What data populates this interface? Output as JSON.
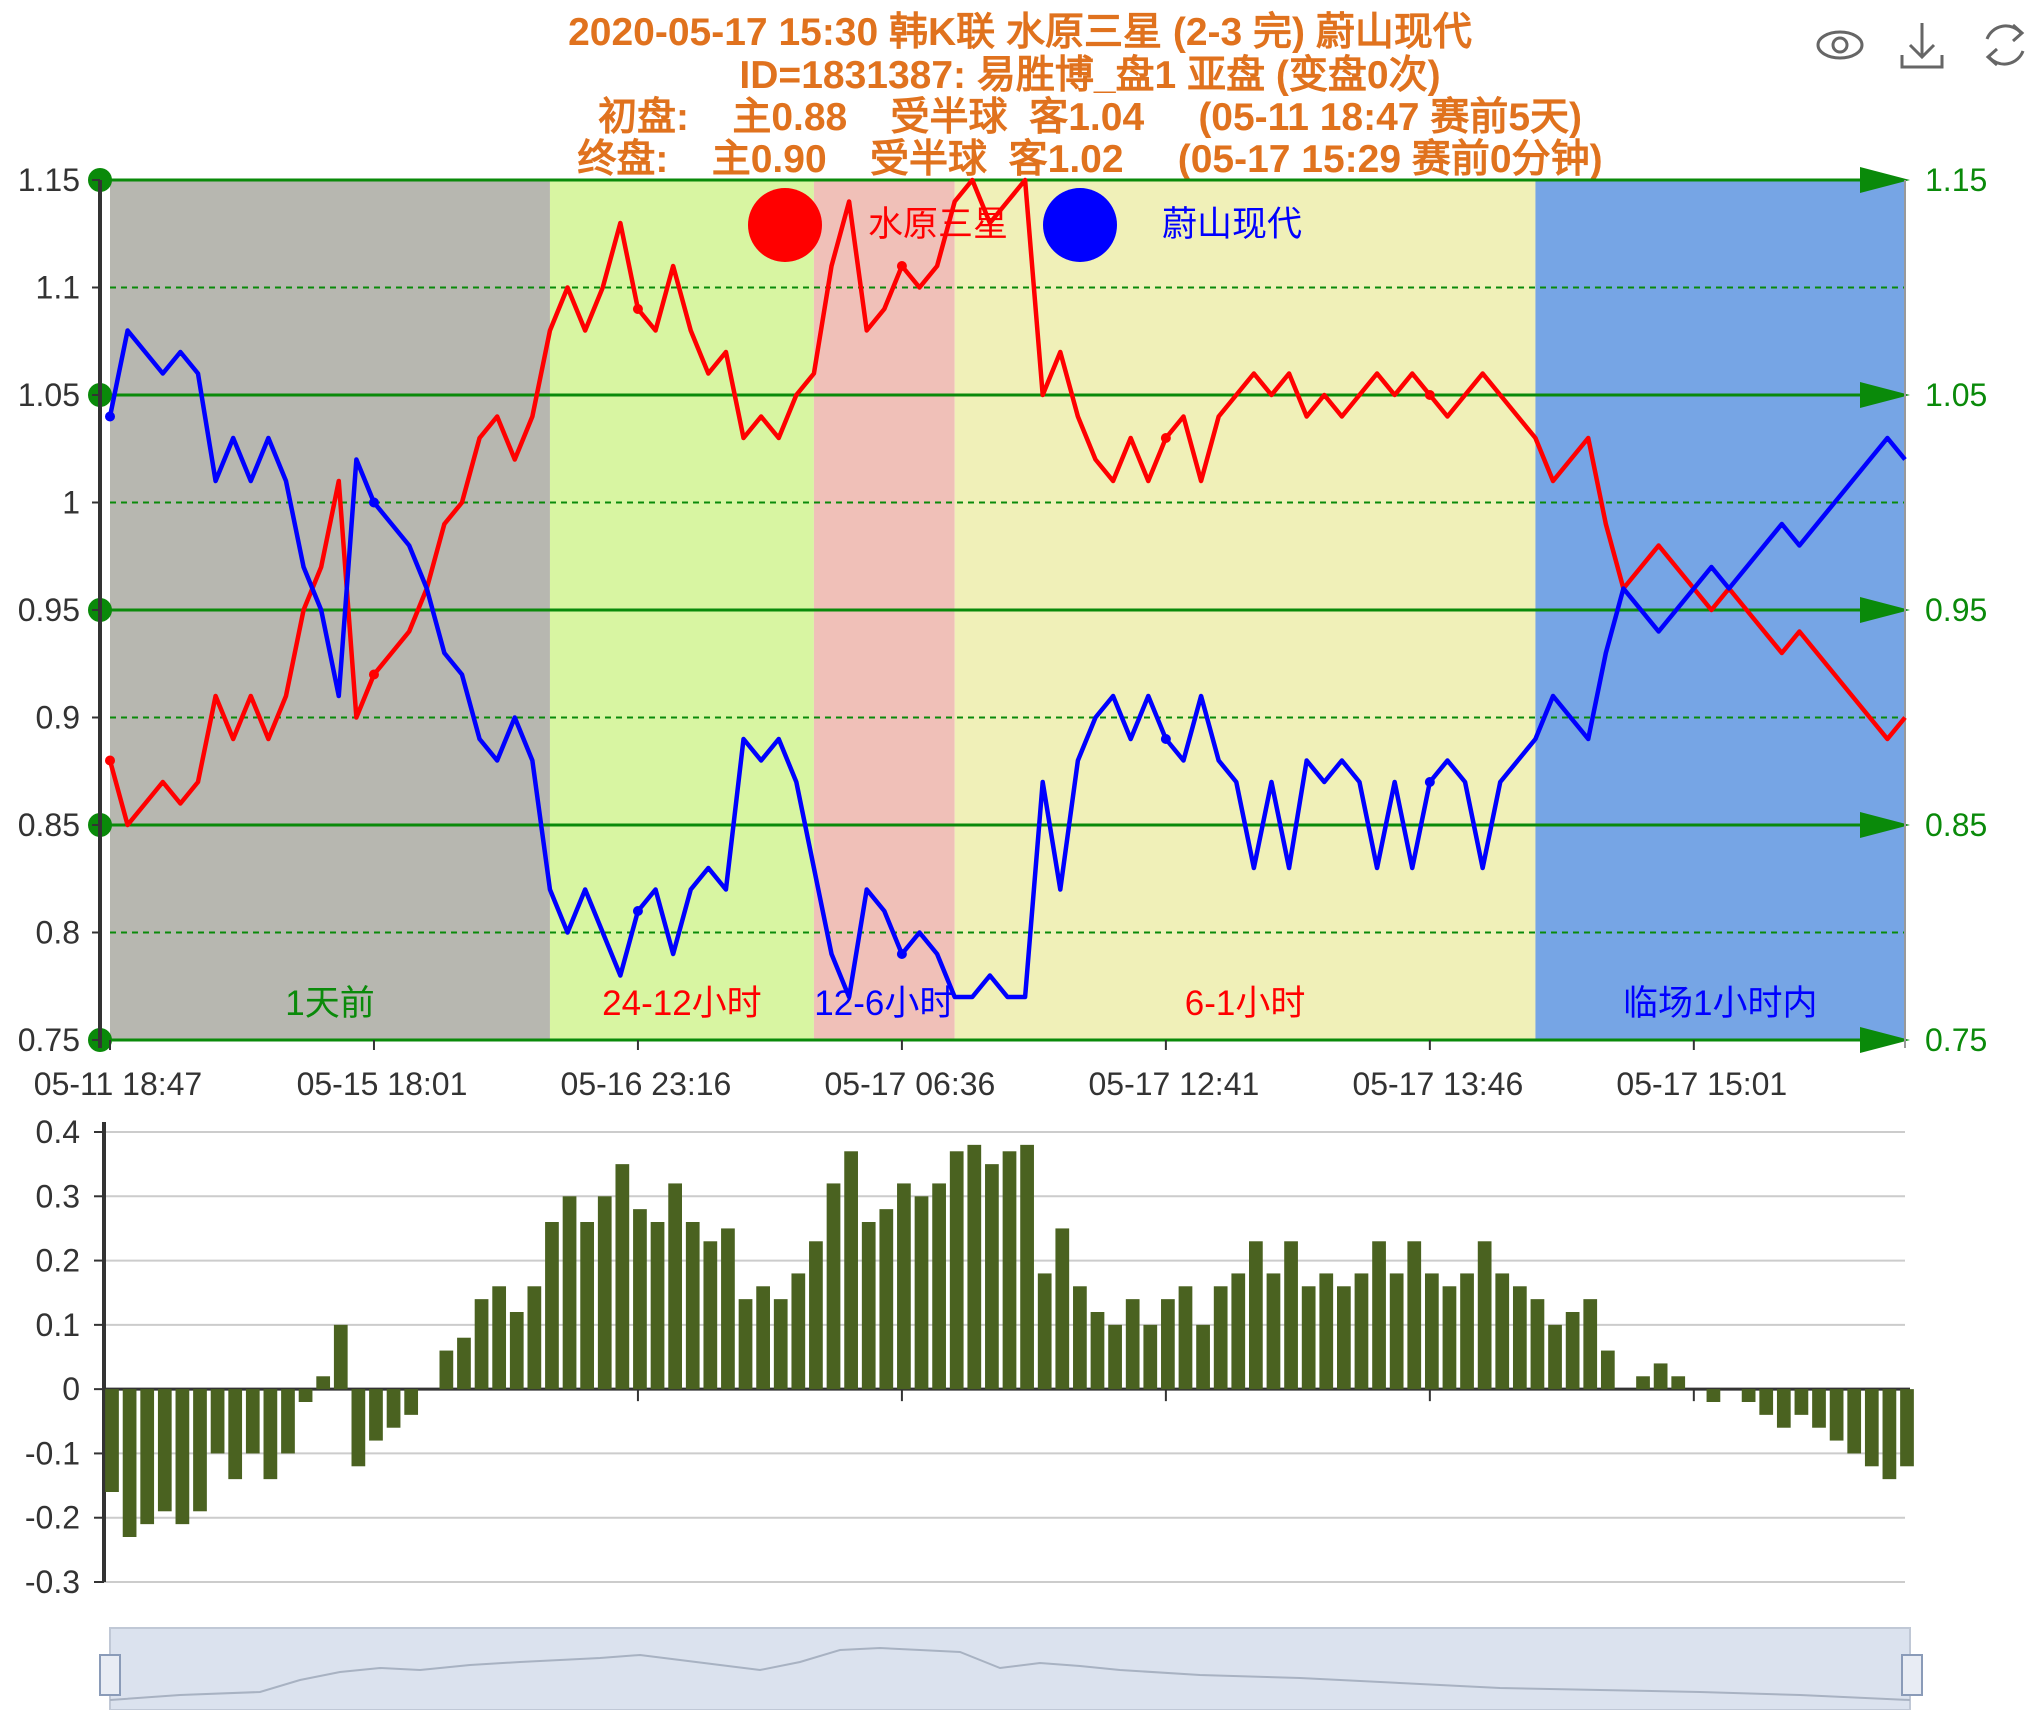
{
  "title": {
    "line1": "2020-05-17 15:30 韩K联 水原三星 (2-3 完) 蔚山现代",
    "line2": "ID=1831387: 易胜博_盘1 亚盘 (变盘0次)",
    "line3": "初盘:    主0.88    受半球  客1.04     (05-11 18:47 赛前5天)",
    "line4": "终盘:    主0.90    受半球  客1.02     (05-17 15:29 赛前0分钟)"
  },
  "toolbar": {
    "view_icon": "eye-icon",
    "download_icon": "download-icon",
    "refresh_icon": "refresh-icon"
  },
  "colors": {
    "home": "#ff0000",
    "away": "#0000ff",
    "grid_green": "#0a8a0a",
    "bar": "#4a6220",
    "title": "#e0721e"
  },
  "chart_data": [
    {
      "type": "line",
      "legend": [
        "水原三星",
        "蔚山现代"
      ],
      "legend_position": "top-center",
      "ylim": [
        0.75,
        1.15
      ],
      "y_ticks": [
        "1.15",
        "1.1",
        "1.05",
        "1",
        "0.95",
        "0.9",
        "0.85",
        "0.8",
        "0.75"
      ],
      "y_ticks_right": [
        "1.15",
        "1.05",
        "0.95",
        "0.85",
        "0.75"
      ],
      "x_tick_labels": [
        "05-11 18:47",
        "05-15 18:01",
        "05-16 23:16",
        "05-17 06:36",
        "05-17 12:41",
        "05-17 13:46",
        "05-17 15:01"
      ],
      "periods": [
        {
          "label": "1天前",
          "start": 0,
          "end": 25,
          "fill": "#b7b7b0",
          "label_color": "#0a8a0a"
        },
        {
          "label": "24-12小时",
          "start": 25,
          "end": 40,
          "fill": "#d8f5a2",
          "label_color": "#ff0000"
        },
        {
          "label": "12-6小时",
          "start": 40,
          "end": 48,
          "fill": "#f0c0b8",
          "label_color": "#0000ff"
        },
        {
          "label": "6-1小时",
          "start": 48,
          "end": 81,
          "fill": "#f0f0b8",
          "label_color": "#ff0000"
        },
        {
          "label": "临场1小时内",
          "start": 81,
          "end": 102,
          "fill": "#76a5e5",
          "label_color": "#0000ff"
        }
      ],
      "series": [
        {
          "name": "水原三星",
          "color": "#ff0000",
          "values": [
            0.88,
            0.85,
            0.86,
            0.87,
            0.86,
            0.87,
            0.91,
            0.89,
            0.91,
            0.89,
            0.91,
            0.95,
            0.97,
            1.01,
            0.9,
            0.92,
            0.93,
            0.94,
            0.96,
            0.99,
            1.0,
            1.03,
            1.04,
            1.02,
            1.04,
            1.08,
            1.1,
            1.08,
            1.1,
            1.13,
            1.09,
            1.08,
            1.11,
            1.08,
            1.06,
            1.07,
            1.03,
            1.04,
            1.03,
            1.05,
            1.06,
            1.11,
            1.14,
            1.08,
            1.09,
            1.11,
            1.1,
            1.11,
            1.14,
            1.15,
            1.13,
            1.14,
            1.15,
            1.05,
            1.07,
            1.04,
            1.02,
            1.01,
            1.03,
            1.01,
            1.03,
            1.04,
            1.01,
            1.04,
            1.05,
            1.06,
            1.05,
            1.06,
            1.04,
            1.05,
            1.04,
            1.05,
            1.06,
            1.05,
            1.06,
            1.05,
            1.04,
            1.05,
            1.06,
            1.05,
            1.04,
            1.03,
            1.01,
            1.02,
            1.03,
            0.99,
            0.96,
            0.97,
            0.98,
            0.97,
            0.96,
            0.95,
            0.96,
            0.95,
            0.94,
            0.93,
            0.94,
            0.93,
            0.92,
            0.91,
            0.9,
            0.89,
            0.9
          ],
          "dot_indices": [
            0,
            15,
            30,
            45,
            60,
            75
          ]
        },
        {
          "name": "蔚山现代",
          "color": "#0000ff",
          "values": [
            1.04,
            1.08,
            1.07,
            1.06,
            1.07,
            1.06,
            1.01,
            1.03,
            1.01,
            1.03,
            1.01,
            0.97,
            0.95,
            0.91,
            1.02,
            1.0,
            0.99,
            0.98,
            0.96,
            0.93,
            0.92,
            0.89,
            0.88,
            0.9,
            0.88,
            0.82,
            0.8,
            0.82,
            0.8,
            0.78,
            0.81,
            0.82,
            0.79,
            0.82,
            0.83,
            0.82,
            0.89,
            0.88,
            0.89,
            0.87,
            0.83,
            0.79,
            0.77,
            0.82,
            0.81,
            0.79,
            0.8,
            0.79,
            0.77,
            0.77,
            0.78,
            0.77,
            0.77,
            0.87,
            0.82,
            0.88,
            0.9,
            0.91,
            0.89,
            0.91,
            0.89,
            0.88,
            0.91,
            0.88,
            0.87,
            0.83,
            0.87,
            0.83,
            0.88,
            0.87,
            0.88,
            0.87,
            0.83,
            0.87,
            0.83,
            0.87,
            0.88,
            0.87,
            0.83,
            0.87,
            0.88,
            0.89,
            0.91,
            0.9,
            0.89,
            0.93,
            0.96,
            0.95,
            0.94,
            0.95,
            0.96,
            0.97,
            0.96,
            0.97,
            0.98,
            0.99,
            0.98,
            0.99,
            1.0,
            1.01,
            1.02,
            1.03,
            1.02
          ],
          "dot_indices": [
            0,
            15,
            30,
            45,
            60,
            75
          ]
        }
      ]
    },
    {
      "type": "bar",
      "ylim": [
        -0.3,
        0.4
      ],
      "y_ticks": [
        "0.4",
        "0.3",
        "0.2",
        "0.1",
        "0",
        "-0.1",
        "-0.2",
        "-0.3"
      ],
      "color": "#4a6220",
      "values": [
        -0.16,
        -0.23,
        -0.21,
        -0.19,
        -0.21,
        -0.19,
        -0.1,
        -0.14,
        -0.1,
        -0.14,
        -0.1,
        -0.02,
        0.02,
        0.1,
        -0.12,
        -0.08,
        -0.06,
        -0.04,
        0,
        0.06,
        0.08,
        0.14,
        0.16,
        0.12,
        0.16,
        0.26,
        0.3,
        0.26,
        0.3,
        0.35,
        0.28,
        0.26,
        0.32,
        0.26,
        0.23,
        0.25,
        0.14,
        0.16,
        0.14,
        0.18,
        0.23,
        0.32,
        0.37,
        0.26,
        0.28,
        0.32,
        0.3,
        0.32,
        0.37,
        0.38,
        0.35,
        0.37,
        0.38,
        0.18,
        0.25,
        0.16,
        0.12,
        0.1,
        0.14,
        0.1,
        0.14,
        0.16,
        0.1,
        0.16,
        0.18,
        0.23,
        0.18,
        0.23,
        0.16,
        0.18,
        0.16,
        0.18,
        0.23,
        0.18,
        0.23,
        0.18,
        0.16,
        0.18,
        0.23,
        0.18,
        0.16,
        0.14,
        0.1,
        0.12,
        0.14,
        0.06,
        0,
        0.02,
        0.04,
        0.02,
        0,
        -0.02,
        0,
        -0.02,
        -0.04,
        -0.06,
        -0.04,
        -0.06,
        -0.08,
        -0.1,
        -0.12,
        -0.14,
        -0.12
      ]
    }
  ]
}
